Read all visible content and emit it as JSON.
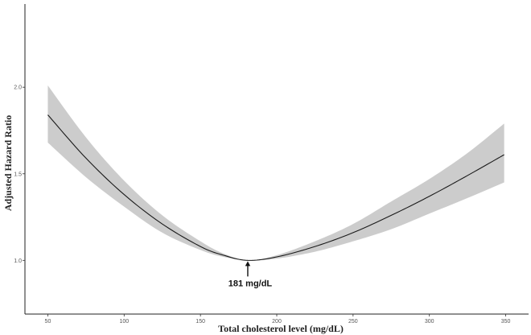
{
  "chart_data": {
    "type": "line",
    "title": "",
    "xlabel": "Total cholesterol level (mg/dL)",
    "ylabel": "Adjusted Hazard Ratio",
    "xlim": [
      35,
      365
    ],
    "ylim": [
      0.69,
      2.48
    ],
    "x_ticks": [
      50,
      100,
      150,
      200,
      250,
      300,
      350
    ],
    "x_tick_labels": [
      "50",
      "100",
      "150",
      "200",
      "250",
      "300",
      "350"
    ],
    "y_ticks": [
      1.0,
      1.5,
      2.0
    ],
    "y_tick_labels": [
      "1.0",
      "1.5",
      "2.0"
    ],
    "grid": false,
    "series": [
      {
        "x": [
          50,
          75,
          100,
          125,
          150,
          165,
          181,
          200,
          225,
          250,
          275,
          300,
          325,
          349
        ],
        "y": [
          1.84,
          1.59,
          1.38,
          1.21,
          1.08,
          1.03,
          1.0,
          1.02,
          1.08,
          1.16,
          1.26,
          1.37,
          1.49,
          1.61
        ],
        "ci_lower": [
          1.68,
          1.48,
          1.31,
          1.16,
          1.06,
          1.02,
          1.0,
          1.01,
          1.05,
          1.11,
          1.18,
          1.27,
          1.36,
          1.45
        ],
        "ci_upper": [
          2.01,
          1.71,
          1.46,
          1.26,
          1.11,
          1.04,
          1.0,
          1.03,
          1.11,
          1.21,
          1.34,
          1.47,
          1.62,
          1.79
        ],
        "line_color": "#1a1a1a",
        "band_color": "#cccccc"
      }
    ],
    "annotations": [
      {
        "text": "181 mg/dL",
        "x": 181,
        "y": 1.0
      }
    ]
  }
}
